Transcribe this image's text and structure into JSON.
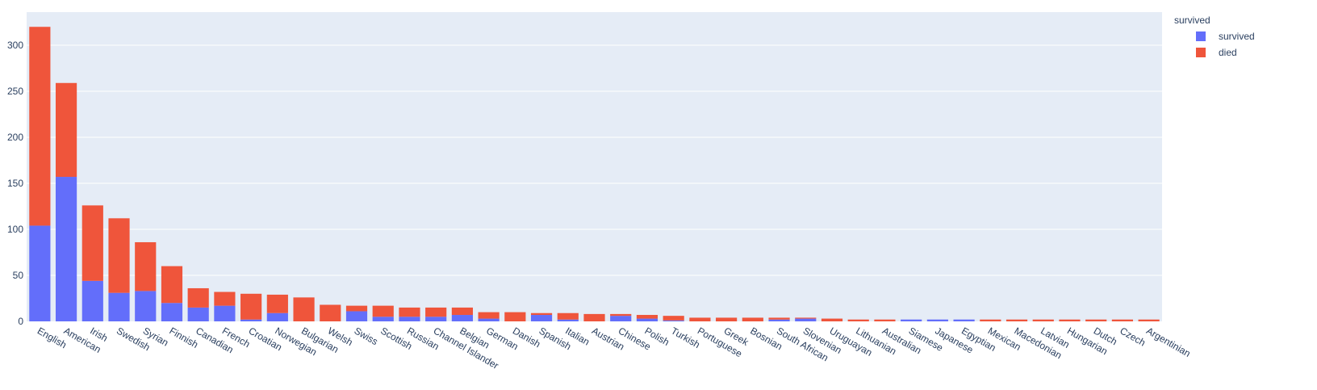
{
  "chart_data": {
    "type": "bar",
    "barmode": "stack",
    "title": "",
    "xlabel": "",
    "ylabel": "",
    "ylim": [
      0,
      336
    ],
    "yticks": [
      0,
      50,
      100,
      150,
      200,
      250,
      300
    ],
    "grid": true,
    "categories": [
      "English",
      "American",
      "Irish",
      "Swedish",
      "Syrian",
      "Finnish",
      "Canadian",
      "French",
      "Croatian",
      "Norwegian",
      "Bulgarian",
      "Welsh",
      "Swiss",
      "Scottish",
      "Russian",
      "Channel Islander",
      "Belgian",
      "German",
      "Danish",
      "Spanish",
      "Italian",
      "Austrian",
      "Chinese",
      "Polish",
      "Turkish",
      "Portuguese",
      "Greek",
      "Bosnian",
      "South African",
      "Slovenian",
      "Uruguayan",
      "Lithuanian",
      "Australian",
      "Siamese",
      "Japanese",
      "Egyptian",
      "Mexican",
      "Macedonian",
      "Latvian",
      "Hungarian",
      "Dutch",
      "Czech",
      "Argentinian"
    ],
    "series": [
      {
        "name": "survived",
        "color": "#636efa",
        "values": [
          104,
          157,
          44,
          31,
          33,
          20,
          15,
          17,
          2,
          9,
          0,
          0,
          11,
          5,
          5,
          5,
          7,
          3,
          0,
          7,
          2,
          0,
          6,
          3,
          1,
          0,
          0,
          0,
          2,
          3,
          0,
          0,
          0,
          2,
          2,
          2,
          0,
          0,
          0,
          0,
          0,
          0,
          0
        ]
      },
      {
        "name": "died",
        "color": "#ef553b",
        "values": [
          216,
          102,
          82,
          81,
          53,
          40,
          21,
          15,
          28,
          20,
          26,
          18,
          6,
          12,
          10,
          10,
          8,
          7,
          10,
          2,
          7,
          8,
          2,
          4,
          5,
          4,
          4,
          4,
          2,
          1,
          3,
          2,
          2,
          0,
          0,
          0,
          2,
          2,
          2,
          2,
          2,
          2,
          2
        ]
      }
    ],
    "legend": {
      "title": "survived",
      "placement": "top-right",
      "entries": [
        "survived",
        "died"
      ]
    },
    "colors": {
      "plot_background": "#e5ecf6",
      "grid": "#ffffff",
      "text": "#2a3f5f"
    }
  }
}
